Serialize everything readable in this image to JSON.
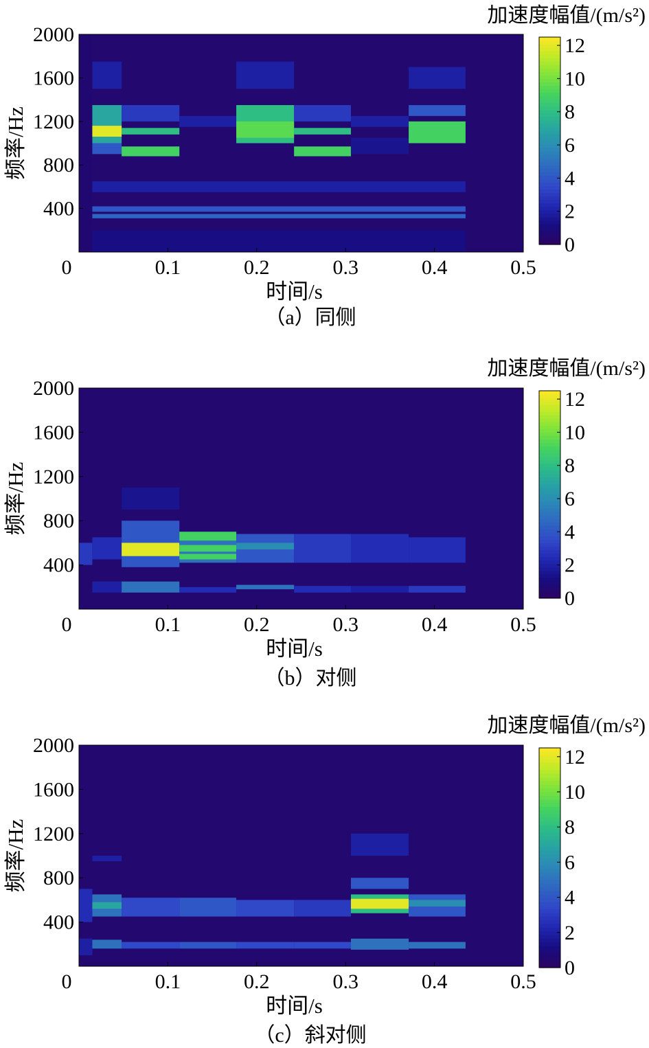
{
  "colormap": [
    "#2d0461",
    "#170c80",
    "#2026b0",
    "#3046c8",
    "#2f66c2",
    "#2c85b8",
    "#27a2a4",
    "#2dbd86",
    "#45d45e",
    "#80e43a",
    "#c2ea28",
    "#fde725"
  ],
  "chart_data": [
    {
      "type": "heatmap",
      "caption": "（a）同侧",
      "xlabel": "时间/s",
      "ylabel": "频率/Hz",
      "colorbar_title": "加速度幅值/(m/s²)",
      "xlim": [
        0,
        0.5
      ],
      "ylim": [
        0,
        2000
      ],
      "clim": [
        0,
        12.5
      ],
      "x_ticks": [
        "0",
        "0.1",
        "0.2",
        "0.3",
        "0.4",
        "0.5"
      ],
      "y_ticks": [
        "400",
        "800",
        "1200",
        "1600",
        "2000"
      ],
      "cb_ticks": [
        "0",
        "2",
        "4",
        "6",
        "8",
        "10",
        "12"
      ],
      "time_bins": [
        0.015,
        0.048,
        0.113,
        0.177,
        0.242,
        0.306,
        0.371,
        0.435,
        0.5
      ],
      "background": 0.5,
      "bands": [
        {
          "t": [
            0,
            1
          ],
          "f": [
            0,
            2000
          ],
          "v": 0.6
        },
        {
          "t": [
            1,
            2
          ],
          "f": [
            1000,
            1350
          ],
          "v": 7
        },
        {
          "t": [
            1,
            2
          ],
          "f": [
            1060,
            1160
          ],
          "v": 12
        },
        {
          "t": [
            1,
            2
          ],
          "f": [
            900,
            1000
          ],
          "v": 4
        },
        {
          "t": [
            1,
            2
          ],
          "f": [
            1500,
            1750
          ],
          "v": 2
        },
        {
          "t": [
            2,
            3
          ],
          "f": [
            1080,
            1140
          ],
          "v": 8
        },
        {
          "t": [
            2,
            3
          ],
          "f": [
            880,
            970
          ],
          "v": 9
        },
        {
          "t": [
            2,
            3
          ],
          "f": [
            1200,
            1350
          ],
          "v": 3
        },
        {
          "t": [
            3,
            4
          ],
          "f": [
            1150,
            1250
          ],
          "v": 2
        },
        {
          "t": [
            4,
            5
          ],
          "f": [
            1000,
            1350
          ],
          "v": 8
        },
        {
          "t": [
            4,
            5
          ],
          "f": [
            1050,
            1200
          ],
          "v": 9.5
        },
        {
          "t": [
            4,
            5
          ],
          "f": [
            1500,
            1750
          ],
          "v": 2
        },
        {
          "t": [
            5,
            6
          ],
          "f": [
            1080,
            1140
          ],
          "v": 8
        },
        {
          "t": [
            5,
            6
          ],
          "f": [
            880,
            970
          ],
          "v": 9
        },
        {
          "t": [
            5,
            6
          ],
          "f": [
            1200,
            1350
          ],
          "v": 3
        },
        {
          "t": [
            6,
            7
          ],
          "f": [
            1150,
            1250
          ],
          "v": 2
        },
        {
          "t": [
            6,
            7
          ],
          "f": [
            900,
            1050
          ],
          "v": 1.5
        },
        {
          "t": [
            7,
            8
          ],
          "f": [
            1000,
            1200
          ],
          "v": 9
        },
        {
          "t": [
            7,
            8
          ],
          "f": [
            1250,
            1350
          ],
          "v": 4
        },
        {
          "t": [
            7,
            8
          ],
          "f": [
            1500,
            1700
          ],
          "v": 2
        },
        {
          "t": [
            1,
            8
          ],
          "f": [
            370,
            420
          ],
          "v": 4
        },
        {
          "t": [
            1,
            8
          ],
          "f": [
            310,
            350
          ],
          "v": 4.5
        },
        {
          "t": [
            1,
            8
          ],
          "f": [
            550,
            650
          ],
          "v": 2
        },
        {
          "t": [
            1,
            8
          ],
          "f": [
            0,
            200
          ],
          "v": 1.2
        }
      ]
    },
    {
      "type": "heatmap",
      "caption": "（b）对侧",
      "xlabel": "时间/s",
      "ylabel": "频率/Hz",
      "colorbar_title": "加速度幅值/(m/s²)",
      "xlim": [
        0,
        0.5
      ],
      "ylim": [
        0,
        2000
      ],
      "clim": [
        0,
        12.5
      ],
      "x_ticks": [
        "0",
        "0.1",
        "0.2",
        "0.3",
        "0.4",
        "0.5"
      ],
      "y_ticks": [
        "400",
        "800",
        "1200",
        "1600",
        "2000"
      ],
      "cb_ticks": [
        "0",
        "2",
        "4",
        "6",
        "8",
        "10",
        "12"
      ],
      "time_bins": [
        0.015,
        0.048,
        0.113,
        0.177,
        0.242,
        0.306,
        0.371,
        0.435,
        0.5
      ],
      "background": 0.5,
      "bands": [
        {
          "t": [
            0,
            1
          ],
          "f": [
            400,
            600
          ],
          "v": 3
        },
        {
          "t": [
            1,
            2
          ],
          "f": [
            450,
            650
          ],
          "v": 2.5
        },
        {
          "t": [
            1,
            2
          ],
          "f": [
            150,
            250
          ],
          "v": 2
        },
        {
          "t": [
            2,
            3
          ],
          "f": [
            380,
            800
          ],
          "v": 4
        },
        {
          "t": [
            2,
            3
          ],
          "f": [
            480,
            600
          ],
          "v": 12
        },
        {
          "t": [
            2,
            3
          ],
          "f": [
            150,
            250
          ],
          "v": 5
        },
        {
          "t": [
            2,
            3
          ],
          "f": [
            900,
            1100
          ],
          "v": 1.5
        },
        {
          "t": [
            3,
            4
          ],
          "f": [
            420,
            700
          ],
          "v": 5
        },
        {
          "t": [
            3,
            4
          ],
          "f": [
            450,
            500
          ],
          "v": 9
        },
        {
          "t": [
            3,
            4
          ],
          "f": [
            520,
            580
          ],
          "v": 9
        },
        {
          "t": [
            3,
            4
          ],
          "f": [
            620,
            700
          ],
          "v": 9
        },
        {
          "t": [
            3,
            4
          ],
          "f": [
            150,
            200
          ],
          "v": 2.5
        },
        {
          "t": [
            4,
            5
          ],
          "f": [
            420,
            680
          ],
          "v": 4
        },
        {
          "t": [
            4,
            5
          ],
          "f": [
            540,
            600
          ],
          "v": 6
        },
        {
          "t": [
            4,
            5
          ],
          "f": [
            180,
            220
          ],
          "v": 5
        },
        {
          "t": [
            5,
            6
          ],
          "f": [
            420,
            680
          ],
          "v": 3
        },
        {
          "t": [
            5,
            6
          ],
          "f": [
            150,
            210
          ],
          "v": 2.5
        },
        {
          "t": [
            6,
            7
          ],
          "f": [
            420,
            680
          ],
          "v": 2.5
        },
        {
          "t": [
            6,
            7
          ],
          "f": [
            150,
            210
          ],
          "v": 2
        },
        {
          "t": [
            7,
            8
          ],
          "f": [
            420,
            650
          ],
          "v": 2.5
        },
        {
          "t": [
            7,
            8
          ],
          "f": [
            150,
            210
          ],
          "v": 3
        }
      ]
    },
    {
      "type": "heatmap",
      "caption": "（c）斜对侧",
      "xlabel": "时间/s",
      "ylabel": "频率/Hz",
      "colorbar_title": "加速度幅值/(m/s²)",
      "xlim": [
        0,
        0.5
      ],
      "ylim": [
        0,
        2000
      ],
      "clim": [
        0,
        12.5
      ],
      "x_ticks": [
        "0",
        "0.1",
        "0.2",
        "0.3",
        "0.4",
        "0.5"
      ],
      "y_ticks": [
        "400",
        "800",
        "1200",
        "1600",
        "2000"
      ],
      "cb_ticks": [
        "0",
        "2",
        "4",
        "6",
        "8",
        "10",
        "12"
      ],
      "time_bins": [
        0.015,
        0.048,
        0.113,
        0.177,
        0.242,
        0.306,
        0.371,
        0.435,
        0.5
      ],
      "background": 0.5,
      "bands": [
        {
          "t": [
            0,
            1
          ],
          "f": [
            400,
            700
          ],
          "v": 2.5
        },
        {
          "t": [
            0,
            1
          ],
          "f": [
            100,
            250
          ],
          "v": 2
        },
        {
          "t": [
            1,
            2
          ],
          "f": [
            450,
            650
          ],
          "v": 5
        },
        {
          "t": [
            1,
            2
          ],
          "f": [
            520,
            580
          ],
          "v": 7
        },
        {
          "t": [
            1,
            2
          ],
          "f": [
            160,
            240
          ],
          "v": 5
        },
        {
          "t": [
            1,
            2
          ],
          "f": [
            950,
            1000
          ],
          "v": 2
        },
        {
          "t": [
            2,
            3
          ],
          "f": [
            450,
            620
          ],
          "v": 3.5
        },
        {
          "t": [
            2,
            3
          ],
          "f": [
            160,
            220
          ],
          "v": 3.5
        },
        {
          "t": [
            3,
            4
          ],
          "f": [
            450,
            620
          ],
          "v": 4
        },
        {
          "t": [
            3,
            4
          ],
          "f": [
            160,
            220
          ],
          "v": 4
        },
        {
          "t": [
            4,
            5
          ],
          "f": [
            450,
            600
          ],
          "v": 3.5
        },
        {
          "t": [
            4,
            5
          ],
          "f": [
            160,
            220
          ],
          "v": 3.5
        },
        {
          "t": [
            5,
            6
          ],
          "f": [
            450,
            600
          ],
          "v": 3
        },
        {
          "t": [
            5,
            6
          ],
          "f": [
            160,
            220
          ],
          "v": 3.5
        },
        {
          "t": [
            6,
            7
          ],
          "f": [
            480,
            650
          ],
          "v": 8
        },
        {
          "t": [
            6,
            7
          ],
          "f": [
            520,
            610
          ],
          "v": 12
        },
        {
          "t": [
            6,
            7
          ],
          "f": [
            700,
            800
          ],
          "v": 4
        },
        {
          "t": [
            6,
            7
          ],
          "f": [
            150,
            250
          ],
          "v": 5
        },
        {
          "t": [
            6,
            7
          ],
          "f": [
            1000,
            1200
          ],
          "v": 2
        },
        {
          "t": [
            7,
            8
          ],
          "f": [
            450,
            650
          ],
          "v": 4
        },
        {
          "t": [
            7,
            8
          ],
          "f": [
            540,
            600
          ],
          "v": 6
        },
        {
          "t": [
            7,
            8
          ],
          "f": [
            160,
            220
          ],
          "v": 5
        }
      ]
    }
  ]
}
